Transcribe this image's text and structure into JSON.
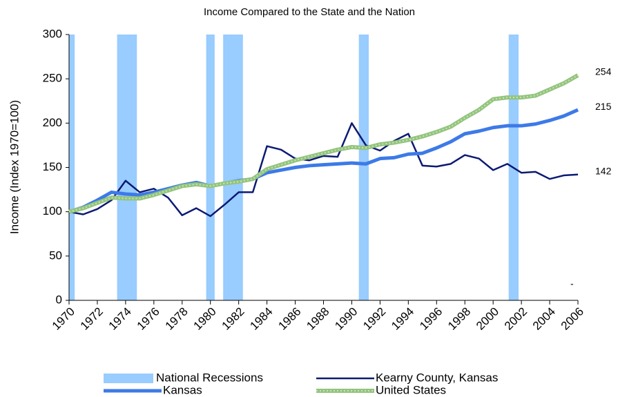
{
  "chart_data": {
    "type": "line",
    "title": "Income Compared to the State and the Nation",
    "y_label": "Income (Index 1970=100)",
    "x": [
      1970,
      1971,
      1972,
      1973,
      1974,
      1975,
      1976,
      1977,
      1978,
      1979,
      1980,
      1981,
      1982,
      1983,
      1984,
      1985,
      1986,
      1987,
      1988,
      1989,
      1990,
      1991,
      1992,
      1993,
      1994,
      1995,
      1996,
      1997,
      1998,
      1999,
      2000,
      2001,
      2002,
      2003,
      2004,
      2005,
      2006
    ],
    "xlim": [
      1970,
      2006
    ],
    "xticks": [
      1970,
      1972,
      1974,
      1976,
      1978,
      1980,
      1982,
      1984,
      1986,
      1988,
      1990,
      1992,
      1994,
      1996,
      1998,
      2000,
      2002,
      2004,
      2006
    ],
    "ylim": [
      0,
      300
    ],
    "yticks": [
      0,
      50,
      100,
      150,
      200,
      250,
      300
    ],
    "recessions": {
      "name": "National Recessions",
      "color": "#99ccff",
      "ranges": [
        [
          1970,
          1970.4
        ],
        [
          1973.4,
          1974.8
        ],
        [
          1979.7,
          1980.3
        ],
        [
          1980.9,
          1982.3
        ],
        [
          1990.5,
          1991.2
        ],
        [
          2001.1,
          2001.8
        ]
      ]
    },
    "series": [
      {
        "name": "Kearny County, Kansas",
        "color": "#0b1a72",
        "width": 2.5,
        "values": [
          100,
          97,
          103,
          113,
          135,
          122,
          126,
          116,
          96,
          104,
          95,
          108,
          122,
          122,
          174,
          170,
          160,
          158,
          163,
          162,
          200,
          175,
          169,
          180,
          188,
          152,
          151,
          154,
          164,
          160,
          147,
          154,
          144,
          145,
          137,
          141,
          142
        ]
      },
      {
        "name": "Kansas",
        "color": "#3d7ae8",
        "width": 5,
        "values": [
          100,
          105,
          113,
          122,
          120,
          119,
          122,
          126,
          130,
          133,
          129,
          132,
          135,
          137,
          144,
          147,
          150,
          152,
          153,
          154,
          155,
          154,
          160,
          161,
          165,
          166,
          172,
          179,
          188,
          191,
          195,
          197,
          197,
          199,
          203,
          208,
          215
        ]
      },
      {
        "name": "United States",
        "color": "#93c47d",
        "width": 6,
        "values": [
          100,
          104,
          110,
          116,
          115,
          115,
          119,
          124,
          129,
          131,
          129,
          132,
          134,
          137,
          148,
          153,
          158,
          162,
          166,
          170,
          173,
          172,
          176,
          178,
          181,
          185,
          190,
          196,
          206,
          215,
          227,
          229,
          229,
          231,
          238,
          245,
          254
        ]
      }
    ],
    "annotation": "-"
  }
}
